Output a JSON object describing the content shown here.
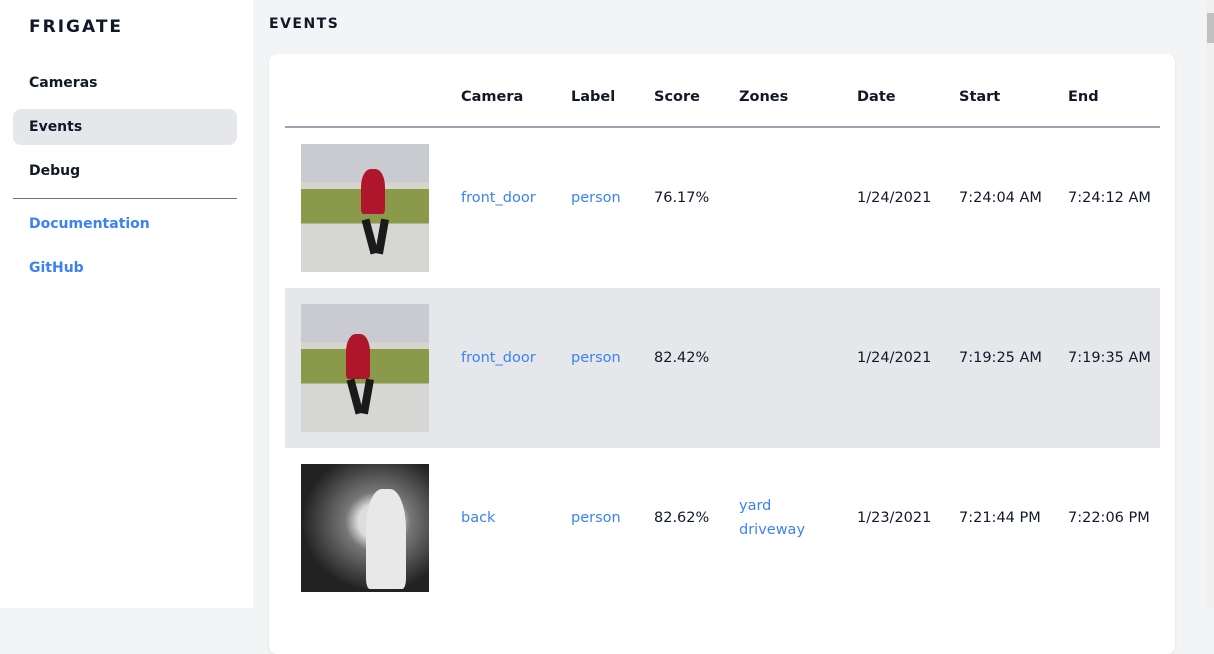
{
  "sidebar": {
    "brand": "FRIGATE",
    "items": [
      {
        "label": "Cameras"
      },
      {
        "label": "Events",
        "active": true
      },
      {
        "label": "Debug"
      }
    ],
    "links": [
      {
        "label": "Documentation"
      },
      {
        "label": "GitHub"
      }
    ]
  },
  "page": {
    "title": "EVENTS"
  },
  "table": {
    "headers": [
      "Camera",
      "Label",
      "Score",
      "Zones",
      "Date",
      "Start",
      "End"
    ],
    "rows": [
      {
        "camera": "front_door",
        "label": "person",
        "score": "76.17%",
        "zones": [
          "",
          ""
        ],
        "date": "1/24/2021",
        "start": "7:24:04 AM",
        "end": "7:24:12 AM"
      },
      {
        "camera": "front_door",
        "label": "person",
        "score": "82.42%",
        "zones": [
          "",
          ""
        ],
        "date": "1/24/2021",
        "start": "7:19:25 AM",
        "end": "7:19:35 AM"
      },
      {
        "camera": "back",
        "label": "person",
        "score": "82.62%",
        "zones": [
          "yard",
          "driveway"
        ],
        "date": "1/23/2021",
        "start": "7:21:44 PM",
        "end": "7:22:06 PM"
      }
    ]
  },
  "colors": {
    "accent": "#3b82f6",
    "active_bg": "#e5e7eb",
    "page_bg": "#f3f4f6"
  }
}
